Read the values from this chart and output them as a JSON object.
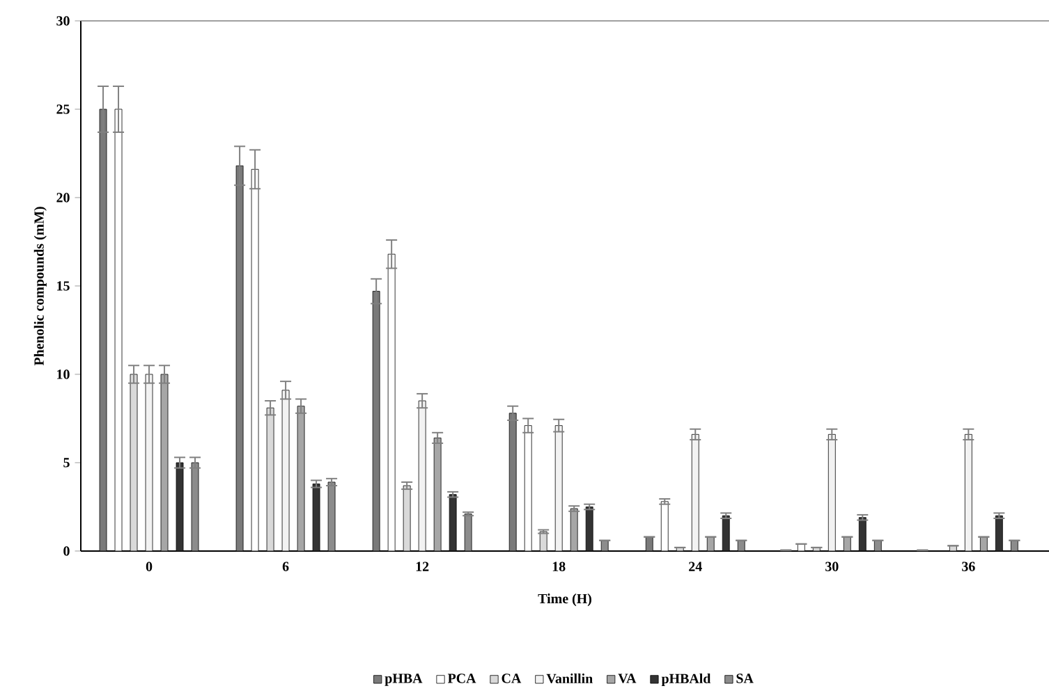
{
  "chart_data": {
    "type": "bar",
    "xlabel": "Time (H)",
    "ylabel": "Phenolic compounds (mM)",
    "categories": [
      "0",
      "6",
      "12",
      "18",
      "24",
      "30",
      "36"
    ],
    "series": [
      {
        "name": "pHBA",
        "color": "#7a7a7a",
        "values": [
          25,
          21.8,
          14.7,
          7.8,
          0.8,
          0.05,
          0.05
        ],
        "errors": [
          1.3,
          1.1,
          0.7,
          0.4,
          null,
          null,
          null
        ]
      },
      {
        "name": "PCA",
        "color": "#ffffff",
        "values": [
          25,
          21.6,
          16.8,
          7.1,
          2.8,
          0.4,
          null
        ],
        "errors": [
          1.3,
          1.1,
          0.8,
          0.4,
          0.15,
          null,
          null
        ]
      },
      {
        "name": "CA",
        "color": "#d9d9d9",
        "values": [
          10,
          8.1,
          3.7,
          1.1,
          0.2,
          0.2,
          0.3
        ],
        "errors": [
          0.5,
          0.4,
          0.2,
          0.1,
          null,
          null,
          null
        ]
      },
      {
        "name": "Vanillin",
        "color": "#f2f2f2",
        "values": [
          10,
          9.1,
          8.5,
          7.1,
          6.6,
          6.6,
          6.6
        ],
        "errors": [
          0.5,
          0.5,
          0.4,
          0.35,
          0.3,
          0.3,
          0.3
        ]
      },
      {
        "name": "VA",
        "color": "#a6a6a6",
        "values": [
          10,
          8.2,
          6.4,
          2.4,
          0.8,
          0.8,
          0.8
        ],
        "errors": [
          0.5,
          0.4,
          0.3,
          0.15,
          null,
          null,
          null
        ]
      },
      {
        "name": "pHBAld",
        "color": "#333333",
        "values": [
          5,
          3.8,
          3.2,
          2.5,
          2.0,
          1.9,
          2.0
        ],
        "errors": [
          0.3,
          0.2,
          0.15,
          0.15,
          0.15,
          0.15,
          0.15
        ]
      },
      {
        "name": "SA",
        "color": "#8c8c8c",
        "values": [
          5,
          3.9,
          2.1,
          0.6,
          0.6,
          0.6,
          0.6
        ],
        "errors": [
          0.3,
          0.2,
          0.1,
          null,
          null,
          null,
          null
        ]
      }
    ],
    "ylim": [
      0,
      30
    ],
    "yticks": [
      0,
      5,
      10,
      15,
      20,
      25,
      30
    ],
    "legend": "bottom",
    "grid": false
  }
}
